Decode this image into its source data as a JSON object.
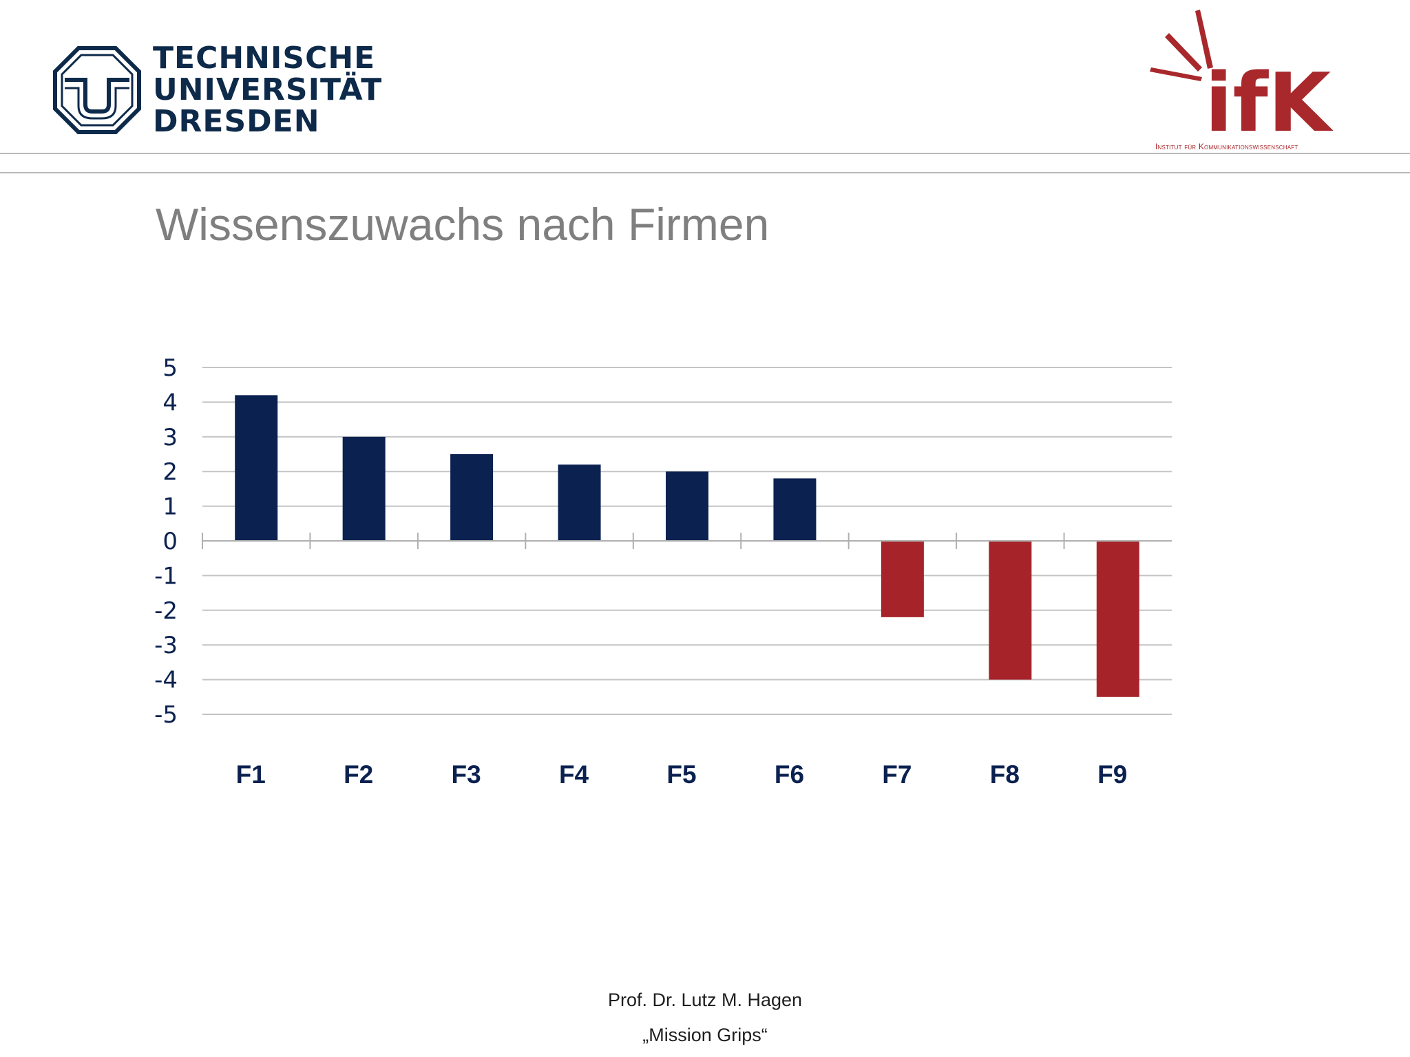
{
  "header": {
    "tud_logo": {
      "lines": [
        "TECHNISCHE",
        "UNIVERSITÄT",
        "DRESDEN"
      ],
      "color": "#0e2a4a"
    },
    "ifk_logo": {
      "wordmark": "ifK",
      "subtitle": "Institut für Kommunikationswissenschaft",
      "color": "#a8282c"
    }
  },
  "slide": {
    "title": "Wissenszuwachs nach Firmen"
  },
  "chart_data": {
    "type": "bar",
    "title": "",
    "xlabel": "",
    "ylabel": "",
    "categories": [
      "F1",
      "F2",
      "F3",
      "F4",
      "F5",
      "F6",
      "F7",
      "F8",
      "F9"
    ],
    "values": [
      4.2,
      3.0,
      2.5,
      2.2,
      2.0,
      1.8,
      -2.2,
      -4.0,
      -4.5
    ],
    "ylim": [
      -5,
      5
    ],
    "yticks": [
      5,
      4,
      3,
      2,
      1,
      0,
      -1,
      -2,
      -3,
      -4,
      -5
    ],
    "grid": true,
    "legend": "none",
    "positive_color": "#0b2150",
    "negative_color": "#a6232a",
    "category_label_color": "#0b2150"
  },
  "footer": {
    "author": "Prof. Dr. Lutz M. Hagen",
    "project": "„Mission Grips“"
  }
}
